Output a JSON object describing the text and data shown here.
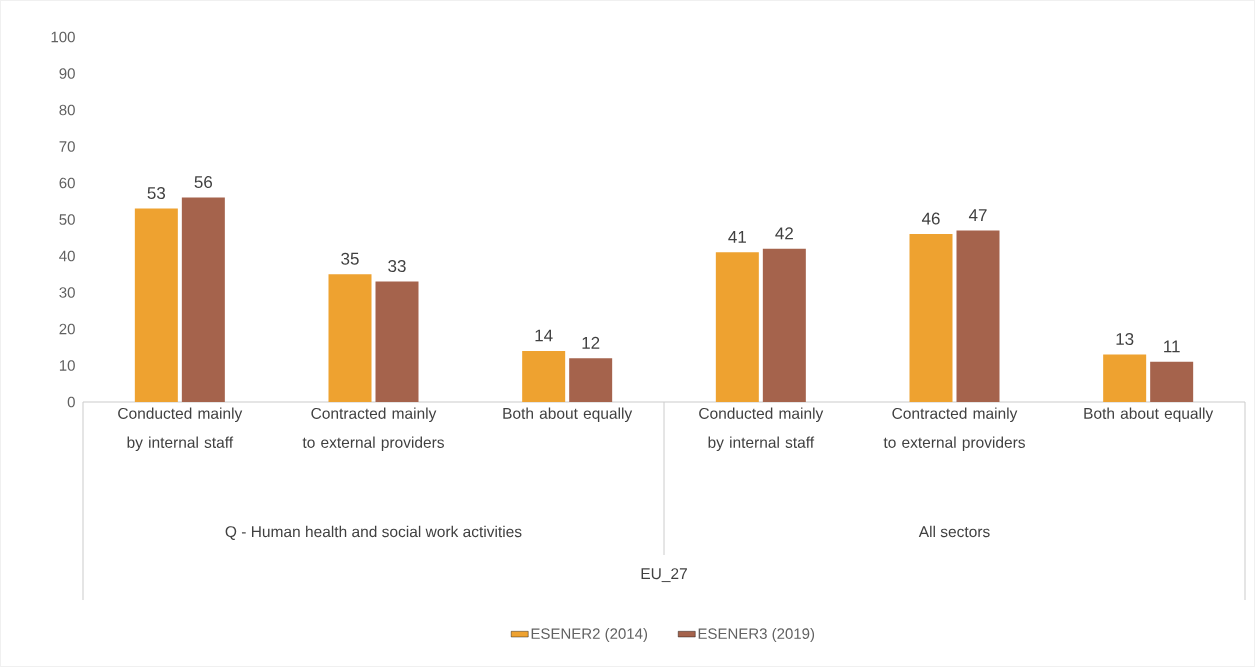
{
  "chart_data": {
    "type": "bar",
    "categories": [
      "Conducted mainly by internal staff",
      "Contracted mainly to external providers",
      "Both about equally",
      "Conducted mainly by internal staff",
      "Contracted mainly to external providers",
      "Both about equally"
    ],
    "series": [
      {
        "name": "ESENER2 (2014)",
        "color": "#eea230",
        "values": [
          53,
          35,
          14,
          41,
          46,
          13
        ]
      },
      {
        "name": "ESENER3 (2019)",
        "color": "#a5634c",
        "values": [
          56,
          33,
          12,
          42,
          47,
          11
        ]
      }
    ],
    "ylim": [
      0,
      100
    ],
    "yticks": [
      0,
      10,
      20,
      30,
      40,
      50,
      60,
      70,
      80,
      90,
      100
    ],
    "data_labels": true,
    "grid": false,
    "legend": "bottom",
    "annotations": [
      "Q - Human health and social work activities",
      "All sectors",
      "EU_27"
    ]
  }
}
